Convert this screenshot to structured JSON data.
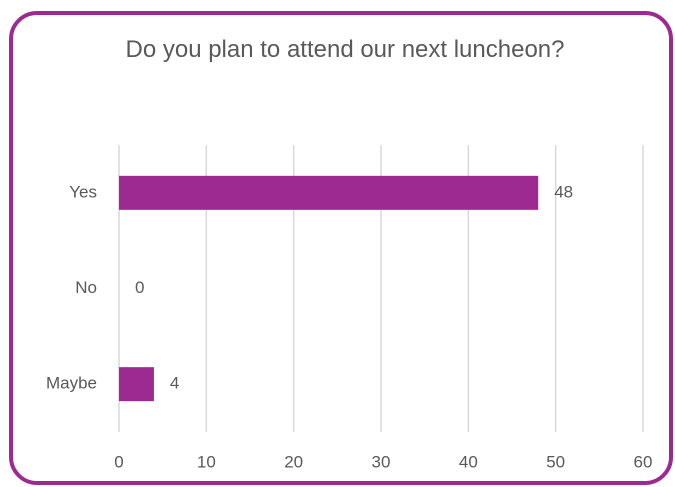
{
  "chart_data": {
    "type": "bar",
    "orientation": "horizontal",
    "title": "Do you plan to attend our next luncheon?",
    "categories": [
      "Yes",
      "No",
      "Maybe"
    ],
    "values": [
      48,
      0,
      4
    ],
    "color": "#9c2a91",
    "xlim": [
      0,
      60
    ],
    "xticks": [
      0,
      10,
      20,
      30,
      40,
      50,
      60
    ],
    "grid": true
  }
}
